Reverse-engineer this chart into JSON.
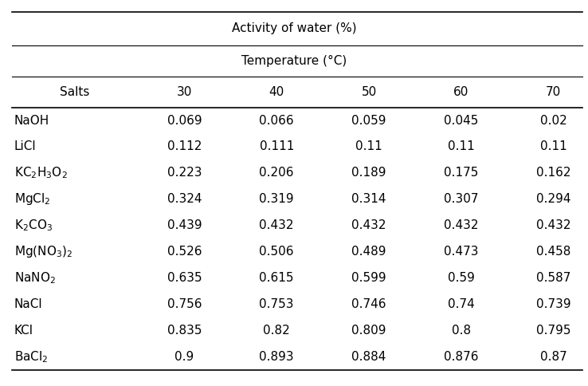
{
  "title": "Activity of water (%)",
  "subtitle": "Temperature (°C)",
  "col_header": [
    "Salts",
    "30",
    "40",
    "50",
    "60",
    "70"
  ],
  "salts_latex": [
    "NaOH",
    "LiCl",
    "KC$_2$H$_3$O$_2$",
    "MgCl$_2$",
    "K$_2$CO$_3$",
    "Mg(NO$_3$)$_2$",
    "NaNO$_2$",
    "NaCl",
    "KCl",
    "BaCl$_2$"
  ],
  "data": [
    [
      "0.069",
      "0.066",
      "0.059",
      "0.045",
      "0.02"
    ],
    [
      "0.112",
      "0.111",
      "0.11",
      "0.11",
      "0.11"
    ],
    [
      "0.223",
      "0.206",
      "0.189",
      "0.175",
      "0.162"
    ],
    [
      "0.324",
      "0.319",
      "0.314",
      "0.307",
      "0.294"
    ],
    [
      "0.439",
      "0.432",
      "0.432",
      "0.432",
      "0.432"
    ],
    [
      "0.526",
      "0.506",
      "0.489",
      "0.473",
      "0.458"
    ],
    [
      "0.635",
      "0.615",
      "0.599",
      "0.59",
      "0.587"
    ],
    [
      "0.756",
      "0.753",
      "0.746",
      "0.74",
      "0.739"
    ],
    [
      "0.835",
      "0.82",
      "0.809",
      "0.8",
      "0.795"
    ],
    [
      "0.9",
      "0.893",
      "0.884",
      "0.876",
      "0.87"
    ]
  ],
  "bg_color": "#ffffff",
  "text_color": "#000000",
  "line_color": "#000000",
  "font_size": 11
}
